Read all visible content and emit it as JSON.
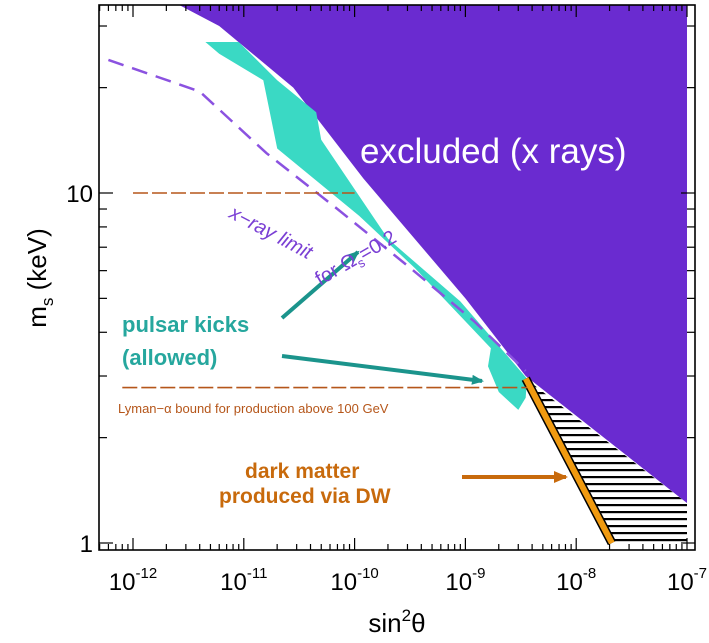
{
  "chart_data": {
    "type": "area",
    "title": "",
    "xlabel": {
      "main": "sin",
      "sup": "2",
      "tail": "θ"
    },
    "ylabel": {
      "main": "m",
      "sub": "s",
      "tail": " (keV)"
    },
    "x_scale": "log",
    "y_scale": "log",
    "xlim": [
      5e-13,
      1e-07
    ],
    "ylim": [
      1,
      37
    ],
    "x_ticks": [
      {
        "value": 1e-12,
        "base": "10",
        "exp": "-12"
      },
      {
        "value": 1e-11,
        "base": "10",
        "exp": "-11"
      },
      {
        "value": 1e-10,
        "base": "10",
        "exp": "-10"
      },
      {
        "value": 1e-09,
        "base": "10",
        "exp": "-9"
      },
      {
        "value": 1e-08,
        "base": "10",
        "exp": "-8"
      },
      {
        "value": 1e-07,
        "base": "10",
        "exp": "-7"
      }
    ],
    "y_ticks": [
      {
        "value": 1,
        "label": "1"
      },
      {
        "value": 10,
        "label": "10"
      }
    ],
    "regions": [
      {
        "name": "excluded-xray",
        "label": "excluded (x rays)",
        "color": "#6a2bd0",
        "polygon": [
          [
            1.7e-12,
            37
          ],
          [
            1e-07,
            37
          ],
          [
            1e-07,
            1.3
          ],
          [
            3.5e-09,
            3.0
          ],
          [
            1e-09,
            5.0
          ],
          [
            1.2e-10,
            11
          ],
          [
            2.8e-11,
            20
          ],
          [
            6e-12,
            30
          ]
        ]
      },
      {
        "name": "pulsar-kicks",
        "label_lines": [
          "pulsar kicks",
          "(allowed)"
        ],
        "color": "#3ad9c4",
        "polygon": [
          [
            4.5e-12,
            27
          ],
          [
            9e-12,
            27
          ],
          [
            2e-11,
            21
          ],
          [
            4.5e-11,
            17
          ],
          [
            5e-11,
            14.2
          ],
          [
            2e-10,
            7.4
          ],
          [
            9e-10,
            4.9
          ],
          [
            3.6e-09,
            2.95
          ],
          [
            3.5e-09,
            2.6
          ],
          [
            3e-09,
            2.4
          ],
          [
            2e-09,
            2.7
          ],
          [
            1.6e-09,
            3.2
          ],
          [
            1.7e-09,
            3.6
          ],
          [
            3.5e-10,
            6.1
          ],
          [
            1.1e-10,
            8.6
          ],
          [
            2e-11,
            13.4
          ],
          [
            1.5e-11,
            21
          ],
          [
            6e-12,
            25
          ]
        ]
      },
      {
        "name": "dark-matter-dw",
        "label_lines": [
          "dark matter",
          "produced via DW"
        ],
        "color": "#f09a10",
        "hatch": true,
        "line": [
          [
            3.5e-09,
            2.95
          ],
          [
            2.1e-08,
            1.0
          ]
        ],
        "polygon": [
          [
            3.5e-09,
            2.95
          ],
          [
            1e-07,
            1.3
          ],
          [
            1e-07,
            1.0
          ],
          [
            2.1e-08,
            1.0
          ]
        ]
      }
    ],
    "lines": [
      {
        "name": "xray-limit",
        "label": "x−ray limit",
        "label2": {
          "pre": "for Ω",
          "sub": "s",
          "post": "=0.2"
        },
        "color": "#8b52e0",
        "dashed": true,
        "points": [
          [
            6e-13,
            24
          ],
          [
            4e-12,
            19.5
          ],
          [
            1.6e-11,
            13
          ],
          [
            7e-11,
            9.0
          ],
          [
            3e-10,
            6.2
          ],
          [
            1.2e-09,
            4.3
          ],
          [
            3.5e-09,
            3.1
          ]
        ]
      },
      {
        "name": "lyman-alpha-10",
        "color": "#b5561a",
        "dashed": true,
        "points": [
          [
            1e-12,
            10
          ],
          [
            1e-10,
            10
          ]
        ]
      },
      {
        "name": "lyman-alpha-bound",
        "label": "Lyman−α bound for production above 100 GeV",
        "color": "#b5561a",
        "dashed": true,
        "points": [
          [
            8e-13,
            2.78
          ],
          [
            3.6e-09,
            2.78
          ]
        ]
      }
    ]
  }
}
